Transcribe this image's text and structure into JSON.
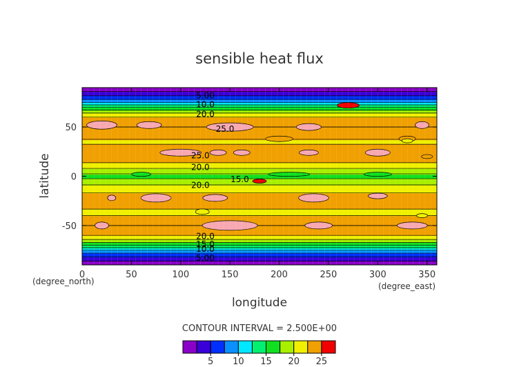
{
  "chart_data": {
    "type": "heatmap",
    "title": "sensible heat flux",
    "xlabel": "longitude",
    "ylabel": "latitude",
    "x_unit": "(degree_east)",
    "y_unit": "(degree_north)",
    "xlim": [
      0,
      360
    ],
    "ylim": [
      -90,
      90
    ],
    "x_ticks": [
      0,
      50,
      100,
      150,
      200,
      250,
      300,
      350
    ],
    "y_ticks": [
      -50,
      0,
      50
    ],
    "contour_interval_text": "CONTOUR INTERVAL = 2.500E+00",
    "contour_interval": 2.5,
    "levels": [
      0,
      2.5,
      5,
      7.5,
      10,
      12.5,
      15,
      17.5,
      20,
      22.5,
      25,
      27.5
    ],
    "colorbar_ticks": [
      5,
      10,
      15,
      20,
      25
    ],
    "colors": [
      "#8a00c8",
      "#3a00d8",
      "#0030ff",
      "#0a90ff",
      "#00e8ff",
      "#00f070",
      "#10e020",
      "#a8f000",
      "#f0f000",
      "#f0a000",
      "#f00000",
      "#f8a8b0"
    ],
    "latitude_profile": [
      {
        "lat": -90,
        "value": 1.0
      },
      {
        "lat": -85,
        "value": 3.0
      },
      {
        "lat": -80,
        "value": 6.0
      },
      {
        "lat": -75,
        "value": 10.0
      },
      {
        "lat": -70,
        "value": 15.0
      },
      {
        "lat": -65,
        "value": 19.5
      },
      {
        "lat": -60,
        "value": 22.5
      },
      {
        "lat": -55,
        "value": 24.5
      },
      {
        "lat": -50,
        "value": 25.0
      },
      {
        "lat": -45,
        "value": 24.0
      },
      {
        "lat": -40,
        "value": 22.5
      },
      {
        "lat": -35,
        "value": 22.0
      },
      {
        "lat": -30,
        "value": 23.5
      },
      {
        "lat": -25,
        "value": 24.5
      },
      {
        "lat": -20,
        "value": 23.5
      },
      {
        "lat": -15,
        "value": 22.0
      },
      {
        "lat": -10,
        "value": 20.5
      },
      {
        "lat": -5,
        "value": 18.5
      },
      {
        "lat": 0,
        "value": 16.5
      },
      {
        "lat": 5,
        "value": 18.5
      },
      {
        "lat": 10,
        "value": 21.0
      },
      {
        "lat": 15,
        "value": 23.0
      },
      {
        "lat": 20,
        "value": 24.5
      },
      {
        "lat": 25,
        "value": 24.5
      },
      {
        "lat": 30,
        "value": 23.0
      },
      {
        "lat": 35,
        "value": 22.0
      },
      {
        "lat": 40,
        "value": 23.0
      },
      {
        "lat": 45,
        "value": 24.0
      },
      {
        "lat": 50,
        "value": 25.0
      },
      {
        "lat": 55,
        "value": 24.0
      },
      {
        "lat": 60,
        "value": 22.5
      },
      {
        "lat": 65,
        "value": 19.5
      },
      {
        "lat": 70,
        "value": 15.0
      },
      {
        "lat": 75,
        "value": 10.0
      },
      {
        "lat": 80,
        "value": 6.0
      },
      {
        "lat": 85,
        "value": 3.0
      },
      {
        "lat": 90,
        "value": 1.0
      }
    ],
    "contour_labels": [
      {
        "text": "5.00",
        "lon": 125,
        "lat": 82
      },
      {
        "text": "10.0",
        "lon": 125,
        "lat": 73
      },
      {
        "text": "20.0",
        "lon": 125,
        "lat": 63
      },
      {
        "text": "25.0",
        "lon": 145,
        "lat": 48
      },
      {
        "text": "25.0",
        "lon": 120,
        "lat": 21
      },
      {
        "text": "20.0",
        "lon": 120,
        "lat": 9
      },
      {
        "text": "15.0",
        "lon": 160,
        "lat": -3
      },
      {
        "text": "20.0",
        "lon": 120,
        "lat": -9
      },
      {
        "text": "20.0",
        "lon": 125,
        "lat": -61
      },
      {
        "text": "15.0",
        "lon": 125,
        "lat": -69
      },
      {
        "text": "10.0",
        "lon": 125,
        "lat": -74
      },
      {
        "text": "5.00",
        "lon": 125,
        "lat": -83
      }
    ]
  }
}
